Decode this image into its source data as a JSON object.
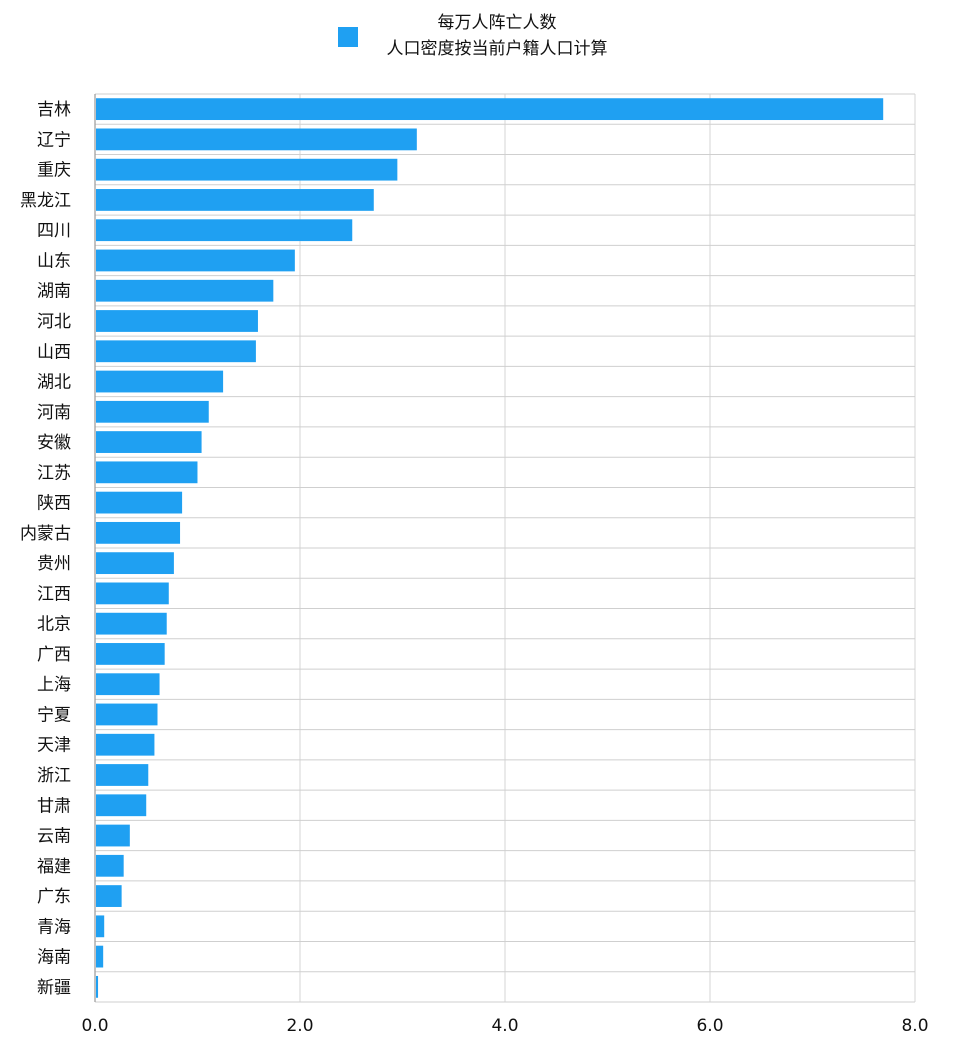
{
  "legend": {
    "line1": "每万人阵亡人数",
    "line2": "人口密度按当前户籍人口计算",
    "color": "#1FA0F2"
  },
  "chart_data": {
    "type": "bar",
    "orientation": "horizontal",
    "categories": [
      "吉林",
      "辽宁",
      "重庆",
      "黑龙江",
      "四川",
      "山东",
      "湖南",
      "河北",
      "山西",
      "湖北",
      "河南",
      "安徽",
      "江苏",
      "陕西",
      "内蒙古",
      "贵州",
      "江西",
      "北京",
      "广西",
      "上海",
      "宁夏",
      "天津",
      "浙江",
      "甘肃",
      "云南",
      "福建",
      "广东",
      "青海",
      "海南",
      "新疆"
    ],
    "series": [
      {
        "name": "每万人阵亡人数",
        "values": [
          7.68,
          3.13,
          2.94,
          2.71,
          2.5,
          1.94,
          1.73,
          1.58,
          1.56,
          1.24,
          1.1,
          1.03,
          0.99,
          0.84,
          0.82,
          0.76,
          0.71,
          0.69,
          0.67,
          0.62,
          0.6,
          0.57,
          0.51,
          0.49,
          0.33,
          0.27,
          0.25,
          0.08,
          0.07,
          0.02
        ]
      }
    ],
    "xlim": [
      0,
      8
    ],
    "xticks": [
      "0.0",
      "2.0",
      "4.0",
      "6.0",
      "8.0"
    ],
    "xtick_values": [
      0,
      2,
      4,
      6,
      8
    ],
    "grid": true,
    "legend_position": "top-center",
    "bar_color": "#1FA0F2"
  }
}
